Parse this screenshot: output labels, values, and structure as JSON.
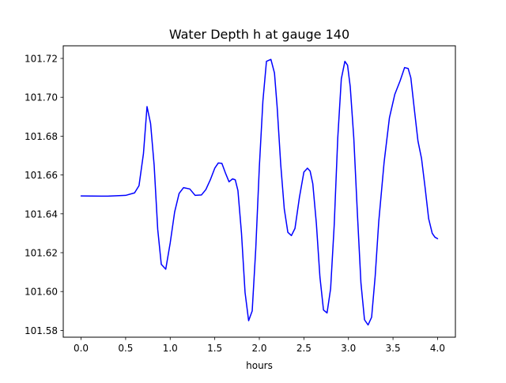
{
  "chart_data": {
    "type": "line",
    "title": "Water Depth h at gauge 140",
    "xlabel": "hours",
    "ylabel": "",
    "xlim": [
      -0.2,
      4.2
    ],
    "ylim": [
      101.5765,
      101.7265
    ],
    "x_ticks": [
      0.0,
      0.5,
      1.0,
      1.5,
      2.0,
      2.5,
      3.0,
      3.5,
      4.0
    ],
    "x_tick_labels": [
      "0.0",
      "0.5",
      "1.0",
      "1.5",
      "2.0",
      "2.5",
      "3.0",
      "3.5",
      "4.0"
    ],
    "y_ticks": [
      101.58,
      101.6,
      101.62,
      101.64,
      101.66,
      101.68,
      101.7,
      101.72
    ],
    "y_tick_labels": [
      "101.58",
      "101.60",
      "101.62",
      "101.64",
      "101.66",
      "101.68",
      "101.70",
      "101.72"
    ],
    "grid": false,
    "series": [
      {
        "color": "#0000ff",
        "x": [
          0.0,
          0.3,
          0.5,
          0.6,
          0.65,
          0.7,
          0.74,
          0.78,
          0.82,
          0.86,
          0.9,
          0.95,
          1.0,
          1.05,
          1.1,
          1.15,
          1.22,
          1.28,
          1.35,
          1.4,
          1.45,
          1.5,
          1.54,
          1.58,
          1.62,
          1.66,
          1.7,
          1.73,
          1.76,
          1.8,
          1.84,
          1.88,
          1.92,
          1.96,
          2.0,
          2.04,
          2.08,
          2.13,
          2.17,
          2.2,
          2.24,
          2.28,
          2.32,
          2.36,
          2.4,
          2.45,
          2.5,
          2.54,
          2.57,
          2.6,
          2.64,
          2.68,
          2.72,
          2.76,
          2.8,
          2.84,
          2.88,
          2.92,
          2.96,
          2.99,
          3.02,
          3.06,
          3.1,
          3.14,
          3.18,
          3.22,
          3.26,
          3.3,
          3.34,
          3.4,
          3.46,
          3.52,
          3.58,
          3.63,
          3.67,
          3.7,
          3.74,
          3.78,
          3.82,
          3.86,
          3.9,
          3.94,
          3.97,
          4.0
        ],
        "y": [
          101.6492,
          101.6491,
          101.6495,
          101.6508,
          101.6545,
          101.671,
          101.6952,
          101.6865,
          101.665,
          101.632,
          101.614,
          101.6115,
          101.625,
          101.641,
          101.6505,
          101.6535,
          101.6528,
          101.6495,
          101.6497,
          101.6525,
          101.6575,
          101.6635,
          101.6662,
          101.666,
          101.661,
          101.6565,
          101.658,
          101.6575,
          101.652,
          101.63,
          101.5995,
          101.585,
          101.59,
          101.622,
          101.664,
          101.698,
          101.7185,
          101.7195,
          101.7125,
          101.695,
          101.6655,
          101.6425,
          101.6305,
          101.6288,
          101.6325,
          101.6485,
          101.6615,
          101.6635,
          101.662,
          101.6555,
          101.635,
          101.6075,
          101.5905,
          101.589,
          101.6015,
          101.634,
          101.679,
          101.7095,
          101.7185,
          101.7165,
          101.7055,
          101.679,
          101.6405,
          101.6045,
          101.5855,
          101.5828,
          101.5868,
          101.608,
          101.636,
          101.6665,
          101.6895,
          101.7015,
          101.7085,
          101.7153,
          101.7148,
          101.71,
          101.6935,
          101.6775,
          101.6685,
          101.6535,
          101.6375,
          101.63,
          101.628,
          101.6272
        ]
      }
    ]
  }
}
